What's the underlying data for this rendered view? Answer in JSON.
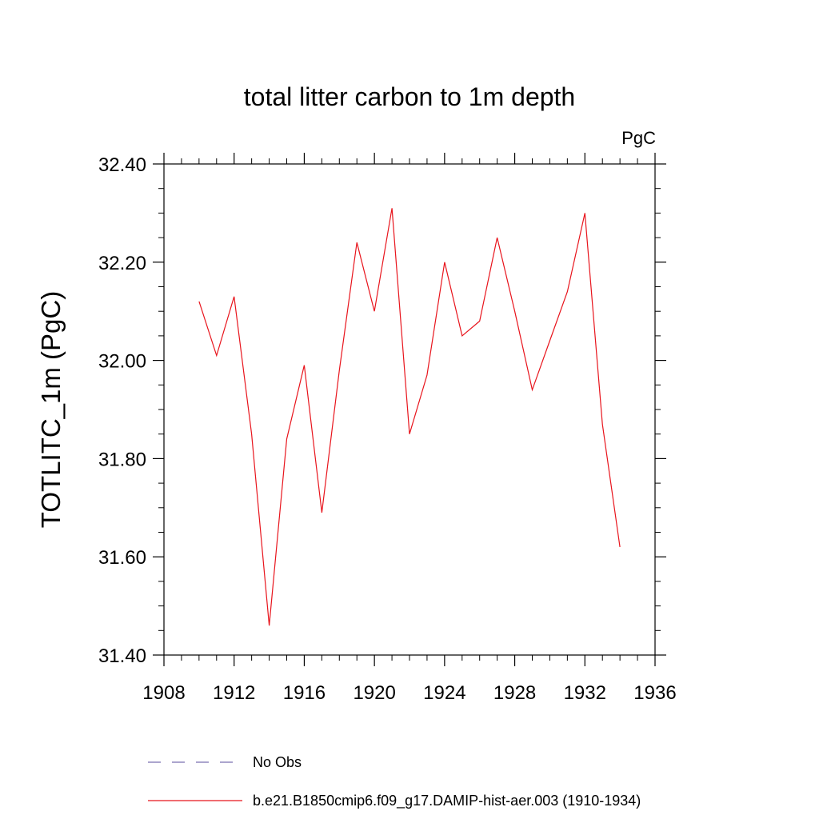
{
  "chart_data": {
    "type": "line",
    "title": "total litter carbon to 1m depth",
    "units": "PgC",
    "xlabel": "",
    "ylabel": "TOTLITC_1m  (PgC)",
    "xlim": [
      1908,
      1936
    ],
    "ylim": [
      31.4,
      32.4
    ],
    "x_ticks": [
      "1908",
      "1912",
      "1916",
      "1920",
      "1924",
      "1928",
      "1932",
      "1936"
    ],
    "y_ticks": [
      "31.40",
      "31.60",
      "31.80",
      "32.00",
      "32.20",
      "32.40"
    ],
    "grid": false,
    "legend_position": "bottom",
    "series": [
      {
        "name": "No Obs",
        "color": "#7b6fb0",
        "dash": "dashed",
        "x": [],
        "y": []
      },
      {
        "name": "b.e21.B1850cmip6.f09_g17.DAMIP-hist-aer.003 (1910-1934)",
        "color": "#e8141c",
        "dash": "solid",
        "x": [
          1910,
          1911,
          1912,
          1913,
          1914,
          1915,
          1916,
          1917,
          1918,
          1919,
          1920,
          1921,
          1922,
          1923,
          1924,
          1925,
          1926,
          1927,
          1928,
          1929,
          1930,
          1931,
          1932,
          1933,
          1934
        ],
        "y": [
          32.12,
          32.01,
          32.13,
          31.85,
          31.46,
          31.84,
          31.99,
          31.69,
          31.98,
          32.24,
          32.1,
          32.31,
          31.85,
          31.97,
          32.2,
          32.05,
          32.08,
          32.25,
          32.1,
          31.94,
          32.04,
          32.14,
          32.3,
          31.87,
          31.62
        ]
      }
    ]
  }
}
